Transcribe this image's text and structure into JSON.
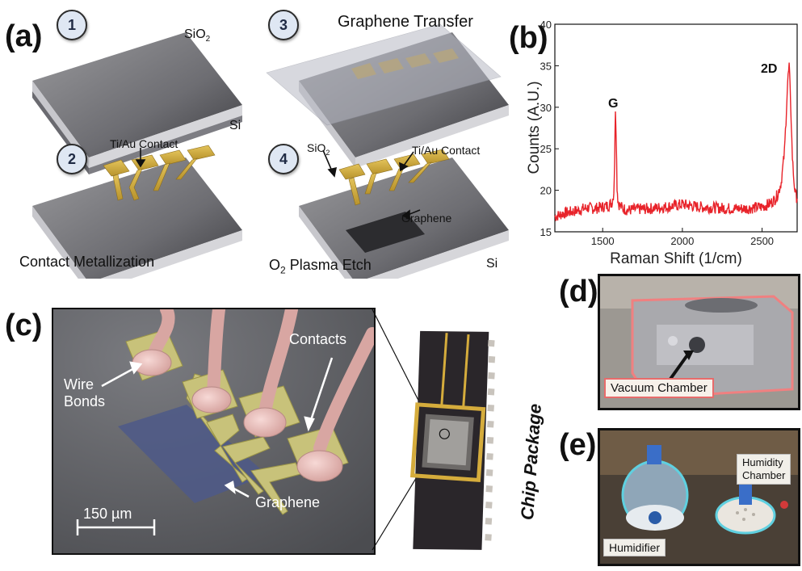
{
  "panels": {
    "a": {
      "label": "(a)",
      "steps": [
        "1",
        "2",
        "3",
        "4"
      ],
      "step1": {
        "sio2": "SiO",
        "sio2_sub": "2",
        "si": "Si"
      },
      "step2": {
        "contact": "Ti/Au Contact",
        "caption": "Contact Metallization"
      },
      "step3": {
        "caption": "Graphene Transfer"
      },
      "step4": {
        "sio2": "SiO",
        "sio2_sub": "2",
        "contact": "Ti/Au Contact",
        "graphene": "Graphene",
        "caption_pre": "O",
        "caption_sub": "2",
        "caption_post": " Plasma Etch",
        "si": "Si"
      }
    },
    "b": {
      "label": "(b)",
      "peak_g": "G",
      "peak_2d": "2D"
    },
    "c": {
      "label": "(c)",
      "wire_bonds": "Wire\nBonds",
      "contacts": "Contacts",
      "graphene": "Graphene",
      "scale": "150 µm",
      "chip_package": "Chip Package"
    },
    "d": {
      "label": "(d)",
      "tag": "Vacuum Chamber"
    },
    "e": {
      "label": "(e)",
      "humidity_chamber": "Humidity\nChamber",
      "humidifier": "Humidifier"
    }
  },
  "chart_data": {
    "type": "line",
    "xlabel": "Raman Shift (1/cm)",
    "ylabel": "Counts (A.U.)",
    "xlim": [
      1200,
      2720
    ],
    "ylim": [
      15,
      40
    ],
    "xticks": [
      1500,
      2000,
      2500
    ],
    "yticks": [
      15,
      20,
      25,
      30,
      35,
      40
    ],
    "grid": false,
    "series": [
      {
        "color": "#e8232a",
        "x": [
          1200,
          1250,
          1300,
          1350,
          1400,
          1450,
          1500,
          1540,
          1560,
          1570,
          1575,
          1580,
          1585,
          1590,
          1595,
          1600,
          1610,
          1630,
          1660,
          1700,
          1800,
          1900,
          2000,
          2100,
          2200,
          2300,
          2400,
          2500,
          2550,
          2580,
          2600,
          2620,
          2640,
          2650,
          2660,
          2670,
          2680,
          2690,
          2700,
          2710,
          2720
        ],
        "y": [
          16.8,
          17.2,
          17.4,
          17.6,
          17.9,
          17.8,
          18.0,
          18.2,
          18.6,
          19.8,
          23.5,
          30.0,
          26.5,
          20.5,
          19.0,
          18.4,
          18.1,
          17.8,
          17.6,
          17.7,
          17.8,
          18.0,
          18.3,
          18.0,
          17.9,
          17.8,
          17.8,
          18.0,
          18.4,
          18.9,
          19.6,
          21.0,
          24.5,
          28.5,
          33.0,
          35.0,
          30.0,
          24.0,
          21.0,
          19.5,
          19.0
        ]
      }
    ]
  }
}
